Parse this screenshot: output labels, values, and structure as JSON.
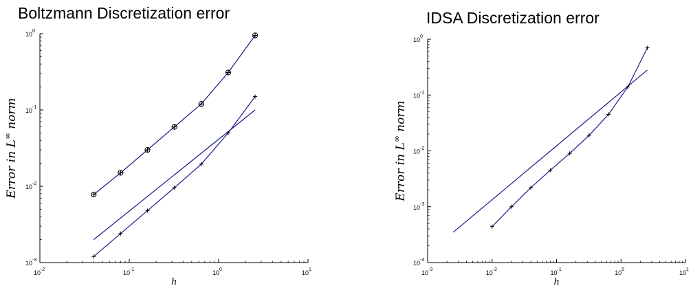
{
  "chart_data": [
    {
      "type": "line",
      "title": "Boltzmann Discretization error",
      "xlabel": "h",
      "ylabel": "Error in L^∞ norm",
      "ylabel_parts": {
        "pre": "Error in L",
        "sup": "∞",
        "post": " norm"
      },
      "xscale": "log",
      "yscale": "log",
      "xlim": [
        0.01,
        10
      ],
      "ylim": [
        0.001,
        1
      ],
      "grid": false,
      "x_ticks": [
        {
          "base": "10",
          "exp": "-2"
        },
        {
          "base": "10",
          "exp": "-1"
        },
        {
          "base": "10",
          "exp": "0"
        },
        {
          "base": "10",
          "exp": "1"
        }
      ],
      "y_ticks": [
        {
          "base": "10",
          "exp": "-3"
        },
        {
          "base": "10",
          "exp": "-2"
        },
        {
          "base": "10",
          "exp": "-1"
        },
        {
          "base": "10",
          "exp": "0"
        }
      ],
      "series": [
        {
          "marker": "circle-plus",
          "color": "#1a1a8c",
          "x": [
            0.04,
            0.08,
            0.16,
            0.32,
            0.64,
            1.28,
            2.56
          ],
          "y": [
            0.0078,
            0.015,
            0.03,
            0.06,
            0.12,
            0.31,
            0.95
          ]
        },
        {
          "marker": "none",
          "color": "#1a1a8c",
          "x": [
            0.04,
            2.56
          ],
          "y": [
            0.002,
            0.1
          ]
        },
        {
          "marker": "plus",
          "color": "#1a1a8c",
          "x": [
            0.04,
            0.08,
            0.16,
            0.32,
            0.64,
            1.28,
            2.56
          ],
          "y": [
            0.0012,
            0.0024,
            0.0048,
            0.0096,
            0.0195,
            0.05,
            0.15
          ]
        }
      ]
    },
    {
      "type": "line",
      "title": "IDSA Discretization error",
      "xlabel": "h",
      "ylabel": "Error in L^∞ norm",
      "ylabel_parts": {
        "pre": "Error in L",
        "sup": "∞",
        "post": " norm"
      },
      "xscale": "log",
      "yscale": "log",
      "xlim": [
        0.001,
        10
      ],
      "ylim": [
        0.0001,
        1
      ],
      "grid": false,
      "x_ticks": [
        {
          "base": "10",
          "exp": "-3"
        },
        {
          "base": "10",
          "exp": "-2"
        },
        {
          "base": "10",
          "exp": "-1"
        },
        {
          "base": "10",
          "exp": "0"
        },
        {
          "base": "10",
          "exp": "1"
        }
      ],
      "y_ticks": [
        {
          "base": "10",
          "exp": "-4"
        },
        {
          "base": "10",
          "exp": "-3"
        },
        {
          "base": "10",
          "exp": "-2"
        },
        {
          "base": "10",
          "exp": "-1"
        },
        {
          "base": "10",
          "exp": "0"
        }
      ],
      "series": [
        {
          "marker": "none",
          "color": "#1a1a8c",
          "x": [
            0.0025,
            2.56
          ],
          "y": [
            0.00035,
            0.28
          ]
        },
        {
          "marker": "plus",
          "color": "#1a1a8c",
          "x": [
            0.01,
            0.02,
            0.04,
            0.08,
            0.16,
            0.32,
            0.64,
            1.28,
            2.56
          ],
          "y": [
            0.00044,
            0.001,
            0.0022,
            0.0045,
            0.009,
            0.019,
            0.045,
            0.14,
            0.7
          ]
        }
      ]
    }
  ]
}
